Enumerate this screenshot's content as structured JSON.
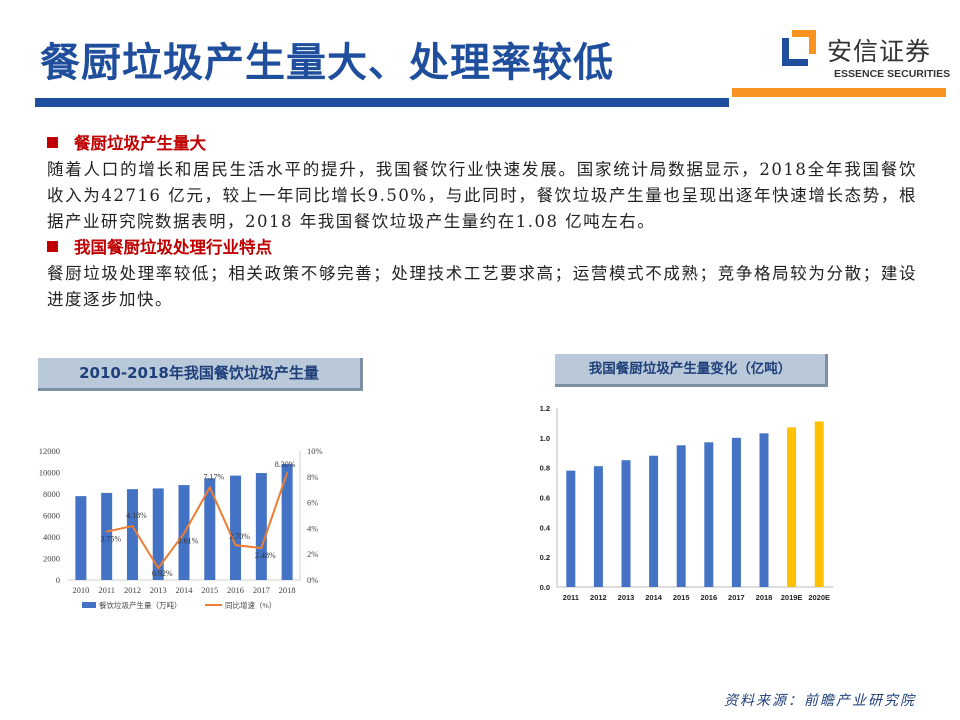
{
  "title": "餐厨垃圾产生量大、处理率较低",
  "logo": {
    "cn": "安信证券",
    "en": "ESSENCE SECURITIES",
    "colors": {
      "blue": "#1f4e9c",
      "orange": "#f7931e"
    }
  },
  "sections": [
    {
      "heading": "餐厨垃圾产生量大",
      "text": "随着人口的增长和居民生活水平的提升，我国餐饮行业快速发展。国家统计局数据显示，2018全年我国餐饮收入为42716 亿元，较上一年同比增长9.50%，与此同时，餐饮垃圾产生量也呈现出逐年快速增长态势，根据产业研究院数据表明，2018 年我国餐饮垃圾产生量约在1.08 亿吨左右。"
    },
    {
      "heading": "我国餐厨垃圾处理行业特点",
      "text": "餐厨垃圾处理率较低；相关政策不够完善；处理技术工艺要求高；运营模式不成熟；竞争格局较为分散；建设进度逐步加快。"
    }
  ],
  "chart_data": [
    {
      "type": "bar+line",
      "title": "2010-2018年我国餐饮垃圾产生量",
      "categories": [
        "2010",
        "2011",
        "2012",
        "2013",
        "2014",
        "2015",
        "2016",
        "2017",
        "2018"
      ],
      "series": [
        {
          "name": "餐饮垃圾产生量（万吨）",
          "type": "bar",
          "axis": "left",
          "color": "#4472c4",
          "values": [
            7800,
            8100,
            8450,
            8520,
            8830,
            9460,
            9710,
            9950,
            10780
          ]
        },
        {
          "name": "同比增速（%）",
          "type": "line",
          "axis": "right",
          "color": "#ed7d31",
          "values": [
            null,
            3.75,
            4.18,
            0.92,
            3.61,
            7.17,
            2.7,
            2.48,
            8.3
          ],
          "labels": [
            "",
            "3.75%",
            "4.18%",
            "0.92%",
            "3.61%",
            "7.17%",
            "2.70%",
            "2.48%",
            "8.30%"
          ]
        }
      ],
      "ylim": [
        0,
        12000
      ],
      "yticks": [
        "0",
        "2000",
        "4000",
        "6000",
        "8000",
        "10000",
        "12000"
      ],
      "y2lim": [
        0,
        10
      ],
      "y2ticks": [
        "0%",
        "2%",
        "4%",
        "6%",
        "8%",
        "10%"
      ],
      "legend": "bottom",
      "grid": false
    },
    {
      "type": "bar",
      "title": "我国餐厨垃圾产生量变化（亿吨）",
      "categories": [
        "2011",
        "2012",
        "2013",
        "2014",
        "2015",
        "2016",
        "2017",
        "2018",
        "2019E",
        "2020E"
      ],
      "values": [
        0.78,
        0.81,
        0.85,
        0.88,
        0.95,
        0.97,
        1.0,
        1.03,
        1.07,
        1.11
      ],
      "colors": [
        "#4472c4",
        "#4472c4",
        "#4472c4",
        "#4472c4",
        "#4472c4",
        "#4472c4",
        "#4472c4",
        "#4472c4",
        "#ffc000",
        "#ffc000"
      ],
      "ylim": [
        0,
        1.2
      ],
      "yticks": [
        "0.0",
        "0.2",
        "0.4",
        "0.6",
        "0.8",
        "1.0",
        "1.2"
      ],
      "grid": false
    }
  ],
  "footer": "资料来源：前瞻产业研究院"
}
